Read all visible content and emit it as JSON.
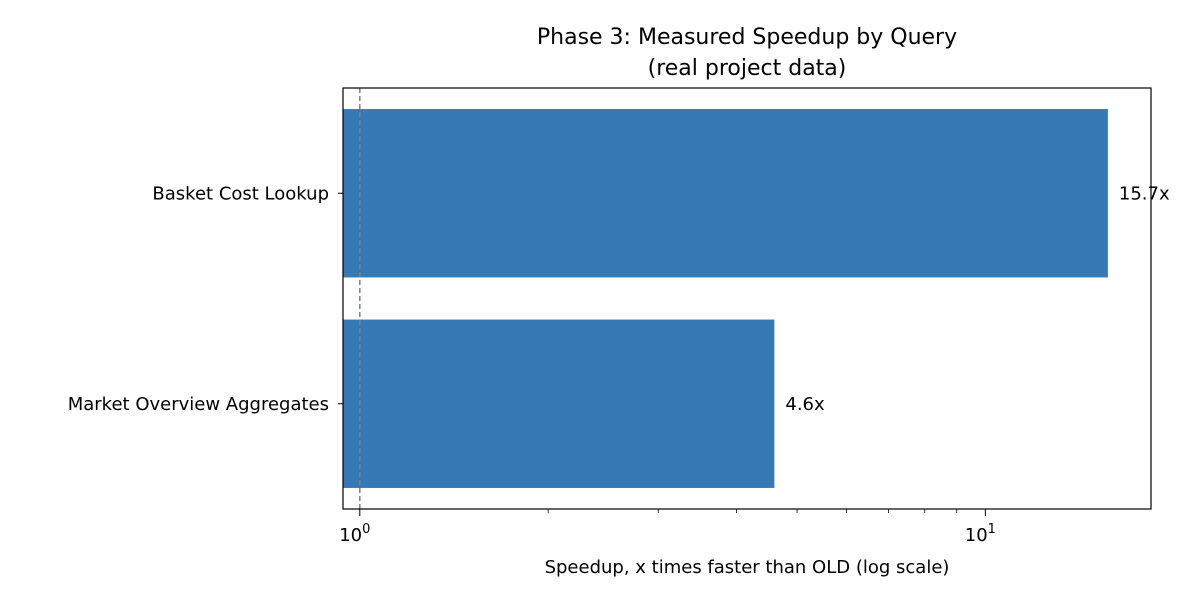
{
  "chart_data": {
    "type": "bar",
    "orientation": "horizontal",
    "title": "Phase 3: Measured Speedup by Query",
    "subtitle": "(real project data)",
    "xlabel": "Speedup, x times faster than OLD (log scale)",
    "ylabel": "",
    "x_scale": "log",
    "xlim": [
      0.94,
      18.4
    ],
    "categories": [
      "Basket Cost Lookup",
      "Market Overview Aggregates"
    ],
    "values": [
      15.7,
      4.6
    ],
    "data_labels": [
      "15.7x",
      "4.6x"
    ],
    "major_ticks": [
      {
        "value": 1,
        "base": "10",
        "exp": "0"
      },
      {
        "value": 10,
        "base": "10",
        "exp": "1"
      }
    ],
    "minor_ticks": [
      2,
      3,
      4,
      5,
      6,
      7,
      8,
      9
    ],
    "reference_line": {
      "value": 1,
      "style": "dashed"
    },
    "bar_color": "#3579b5",
    "reference_line_color": "#808080",
    "grid": false,
    "legend": "none"
  }
}
